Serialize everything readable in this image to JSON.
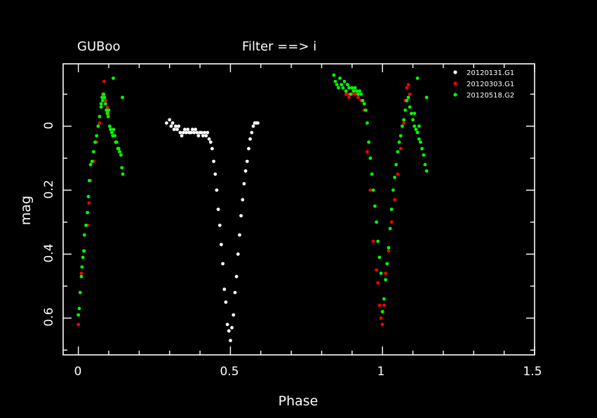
{
  "chart_data": {
    "type": "scatter",
    "title_left": "GUBoo",
    "title_center": "Filter ==> i",
    "xlabel": "Phase",
    "ylabel": "mag",
    "xlim": [
      -0.05,
      1.5
    ],
    "ylim": [
      0.715,
      -0.195
    ],
    "y_inverted": true,
    "x_ticks": [
      0,
      0.5,
      1,
      1.5
    ],
    "x_tick_labels": [
      "0",
      "0.5",
      "1",
      "1.5"
    ],
    "y_ticks": [
      0,
      0.2,
      0.4,
      0.6
    ],
    "y_tick_labels": [
      "0",
      "0.2",
      "0.4",
      "0.6"
    ],
    "legend_position": "top-right",
    "series": [
      {
        "name": "20120131.G1",
        "color": "#ffffff",
        "points": [
          [
            0.29,
            -0.01
          ],
          [
            0.3,
            -0.02
          ],
          [
            0.305,
            0.0
          ],
          [
            0.31,
            -0.01
          ],
          [
            0.315,
            0.01
          ],
          [
            0.32,
            0.0
          ],
          [
            0.325,
            0.01
          ],
          [
            0.33,
            0.0
          ],
          [
            0.335,
            0.02
          ],
          [
            0.34,
            0.03
          ],
          [
            0.345,
            0.02
          ],
          [
            0.35,
            0.01
          ],
          [
            0.355,
            0.02
          ],
          [
            0.36,
            0.01
          ],
          [
            0.365,
            0.02
          ],
          [
            0.37,
            0.02
          ],
          [
            0.375,
            0.01
          ],
          [
            0.38,
            0.02
          ],
          [
            0.385,
            0.01
          ],
          [
            0.39,
            0.02
          ],
          [
            0.395,
            0.03
          ],
          [
            0.4,
            0.02
          ],
          [
            0.405,
            0.02
          ],
          [
            0.41,
            0.03
          ],
          [
            0.415,
            0.02
          ],
          [
            0.42,
            0.03
          ],
          [
            0.425,
            0.02
          ],
          [
            0.43,
            0.04
          ],
          [
            0.435,
            0.05
          ],
          [
            0.44,
            0.07
          ],
          [
            0.445,
            0.11
          ],
          [
            0.45,
            0.15
          ],
          [
            0.455,
            0.2
          ],
          [
            0.46,
            0.26
          ],
          [
            0.465,
            0.31
          ],
          [
            0.47,
            0.37
          ],
          [
            0.475,
            0.43
          ],
          [
            0.48,
            0.51
          ],
          [
            0.485,
            0.55
          ],
          [
            0.49,
            0.62
          ],
          [
            0.495,
            0.64
          ],
          [
            0.5,
            0.67
          ],
          [
            0.505,
            0.63
          ],
          [
            0.51,
            0.59
          ],
          [
            0.515,
            0.52
          ],
          [
            0.52,
            0.47
          ],
          [
            0.525,
            0.4
          ],
          [
            0.53,
            0.34
          ],
          [
            0.535,
            0.28
          ],
          [
            0.54,
            0.23
          ],
          [
            0.545,
            0.18
          ],
          [
            0.55,
            0.14
          ],
          [
            0.555,
            0.11
          ],
          [
            0.56,
            0.07
          ],
          [
            0.565,
            0.04
          ],
          [
            0.57,
            0.02
          ],
          [
            0.575,
            0.0
          ],
          [
            0.58,
            -0.01
          ],
          [
            0.585,
            -0.01
          ],
          [
            0.59,
            -0.01
          ]
        ]
      },
      {
        "name": "20120303.G1",
        "color": "#ff0000",
        "points": [
          [
            0.0,
            0.62
          ],
          [
            0.01,
            0.46
          ],
          [
            0.02,
            0.39
          ],
          [
            0.03,
            0.31
          ],
          [
            0.035,
            0.24
          ],
          [
            0.04,
            0.17
          ],
          [
            0.05,
            0.11
          ],
          [
            0.06,
            0.05
          ],
          [
            0.07,
            -0.01
          ],
          [
            0.075,
            -0.06
          ],
          [
            0.08,
            -0.1
          ],
          [
            0.085,
            -0.14
          ],
          [
            0.09,
            -0.08
          ],
          [
            0.095,
            -0.06
          ],
          [
            0.1,
            -0.04
          ],
          [
            0.88,
            -0.1
          ],
          [
            0.885,
            -0.1
          ],
          [
            0.89,
            -0.09
          ],
          [
            0.9,
            -0.1
          ],
          [
            0.91,
            -0.1
          ],
          [
            0.92,
            -0.09
          ],
          [
            0.93,
            -0.08
          ],
          [
            0.94,
            -0.05
          ],
          [
            0.95,
            0.08
          ],
          [
            0.96,
            0.2
          ],
          [
            0.97,
            0.36
          ],
          [
            0.98,
            0.45
          ],
          [
            0.985,
            0.49
          ],
          [
            0.99,
            0.56
          ],
          [
            0.995,
            0.6
          ],
          [
            1.0,
            0.62
          ],
          [
            1.005,
            0.56
          ],
          [
            1.01,
            0.46
          ],
          [
            1.02,
            0.39
          ],
          [
            1.03,
            0.3
          ],
          [
            1.04,
            0.23
          ],
          [
            1.05,
            0.15
          ],
          [
            1.06,
            0.07
          ],
          [
            1.07,
            -0.01
          ],
          [
            1.075,
            -0.08
          ],
          [
            1.08,
            -0.12
          ],
          [
            1.085,
            -0.13
          ],
          [
            1.09,
            -0.1
          ]
        ]
      },
      {
        "name": "20120518.G2",
        "color": "#00ff00",
        "points": [
          [
            0.0,
            0.59
          ],
          [
            0.003,
            0.57
          ],
          [
            0.006,
            0.52
          ],
          [
            0.01,
            0.47
          ],
          [
            0.012,
            0.44
          ],
          [
            0.015,
            0.41
          ],
          [
            0.018,
            0.39
          ],
          [
            0.02,
            0.34
          ],
          [
            0.025,
            0.31
          ],
          [
            0.03,
            0.27
          ],
          [
            0.033,
            0.22
          ],
          [
            0.036,
            0.17
          ],
          [
            0.04,
            0.12
          ],
          [
            0.045,
            0.11
          ],
          [
            0.05,
            0.08
          ],
          [
            0.055,
            0.05
          ],
          [
            0.06,
            0.03
          ],
          [
            0.065,
            0.0
          ],
          [
            0.07,
            -0.03
          ],
          [
            0.075,
            -0.06
          ],
          [
            0.08,
            -0.08
          ],
          [
            0.083,
            -0.1
          ],
          [
            0.086,
            -0.09
          ],
          [
            0.089,
            -0.07
          ],
          [
            0.092,
            -0.05
          ],
          [
            0.095,
            -0.04
          ],
          [
            0.098,
            -0.03
          ],
          [
            0.1,
            -0.05
          ],
          [
            0.103,
            0.0
          ],
          [
            0.106,
            0.01
          ],
          [
            0.11,
            0.02
          ],
          [
            0.113,
            0.03
          ],
          [
            0.116,
            0.01
          ],
          [
            0.12,
            0.03
          ],
          [
            0.123,
            0.05
          ],
          [
            0.126,
            0.05
          ],
          [
            0.13,
            0.07
          ],
          [
            0.133,
            0.07
          ],
          [
            0.136,
            0.08
          ],
          [
            0.14,
            0.09
          ],
          [
            0.143,
            0.13
          ],
          [
            0.146,
            0.15
          ],
          [
            0.115,
            -0.15
          ],
          [
            0.145,
            -0.09
          ],
          [
            0.075,
            -0.07
          ],
          [
            0.078,
            -0.09
          ],
          [
            0.84,
            -0.16
          ],
          [
            0.845,
            -0.14
          ],
          [
            0.85,
            -0.13
          ],
          [
            0.855,
            -0.12
          ],
          [
            0.86,
            -0.15
          ],
          [
            0.865,
            -0.13
          ],
          [
            0.87,
            -0.12
          ],
          [
            0.875,
            -0.14
          ],
          [
            0.88,
            -0.11
          ],
          [
            0.885,
            -0.13
          ],
          [
            0.89,
            -0.12
          ],
          [
            0.895,
            -0.1
          ],
          [
            0.9,
            -0.12
          ],
          [
            0.905,
            -0.11
          ],
          [
            0.91,
            -0.12
          ],
          [
            0.915,
            -0.11
          ],
          [
            0.92,
            -0.1
          ],
          [
            0.925,
            -0.11
          ],
          [
            0.93,
            -0.1
          ],
          [
            0.935,
            -0.08
          ],
          [
            0.94,
            -0.07
          ],
          [
            0.945,
            -0.05
          ],
          [
            0.95,
            -0.01
          ],
          [
            0.955,
            0.05
          ],
          [
            0.96,
            0.1
          ],
          [
            0.965,
            0.15
          ],
          [
            0.97,
            0.2
          ],
          [
            0.975,
            0.25
          ],
          [
            0.98,
            0.3
          ],
          [
            0.985,
            0.36
          ],
          [
            0.99,
            0.41
          ],
          [
            0.995,
            0.46
          ],
          [
            1.0,
            0.58
          ],
          [
            1.005,
            0.54
          ],
          [
            1.01,
            0.48
          ],
          [
            1.015,
            0.43
          ],
          [
            1.02,
            0.38
          ],
          [
            1.025,
            0.32
          ],
          [
            1.03,
            0.26
          ],
          [
            1.035,
            0.2
          ],
          [
            1.04,
            0.16
          ],
          [
            1.045,
            0.12
          ],
          [
            1.05,
            0.08
          ],
          [
            1.055,
            0.05
          ],
          [
            1.06,
            0.03
          ],
          [
            1.065,
            0.0
          ],
          [
            1.07,
            -0.02
          ],
          [
            1.075,
            -0.05
          ],
          [
            1.08,
            -0.08
          ],
          [
            1.085,
            -0.09
          ],
          [
            1.09,
            -0.06
          ],
          [
            1.095,
            -0.04
          ],
          [
            1.1,
            -0.02
          ],
          [
            1.105,
            0.0
          ],
          [
            1.11,
            0.01
          ],
          [
            1.115,
            0.02
          ],
          [
            1.12,
            0.04
          ],
          [
            1.125,
            0.05
          ],
          [
            1.13,
            0.07
          ],
          [
            1.135,
            0.09
          ],
          [
            1.14,
            0.12
          ],
          [
            1.145,
            0.14
          ],
          [
            1.115,
            -0.15
          ],
          [
            1.145,
            -0.09
          ],
          [
            1.105,
            -0.04
          ],
          [
            1.12,
            0.0
          ]
        ]
      }
    ]
  }
}
